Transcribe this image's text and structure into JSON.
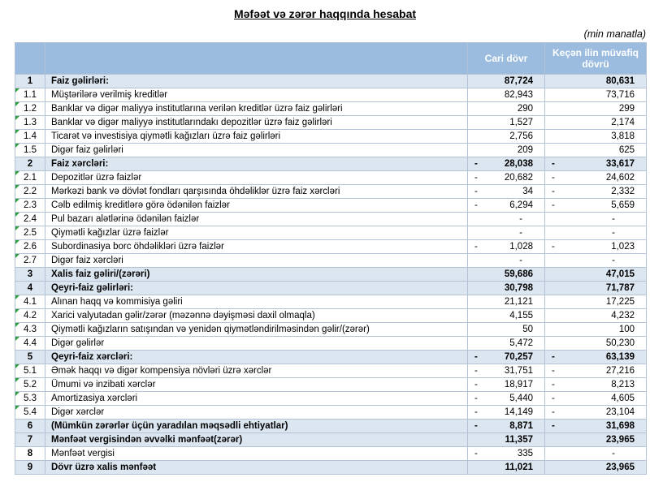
{
  "page": {
    "title": "Məfəət və zərər haqqında hesabat",
    "unit_note": "(min manatla)"
  },
  "colors": {
    "header_bg": "#9bbcdf",
    "header_text": "#ffffff",
    "band_bg": "#dce6f1",
    "border": "#b3c2d4",
    "flag_green": "#2f9e41"
  },
  "table": {
    "header": {
      "col_no": "",
      "col_label": "",
      "col_current": "Cari dövr",
      "col_previous": "Keçən ilin müvafiq dövrü"
    },
    "rows": [
      {
        "no": "1",
        "label": "Faiz gəlirləri:",
        "cur_sign": "",
        "cur": "87,724",
        "prev_sign": "",
        "prev": "80,631",
        "summary": true,
        "flag": false
      },
      {
        "no": "1.1",
        "label": "Müştərilərə verilmiş kreditlər",
        "cur_sign": "",
        "cur": "82,943",
        "prev_sign": "",
        "prev": "73,716",
        "summary": false,
        "flag": true
      },
      {
        "no": "1.2",
        "label": "Banklar və digər maliyyə institutlarına verilən kreditlər üzrə faiz gəlirləri",
        "cur_sign": "",
        "cur": "290",
        "prev_sign": "",
        "prev": "299",
        "summary": false,
        "flag": true
      },
      {
        "no": "1.3",
        "label": "Banklar və digər maliyyə institutlarındakı depozitlər üzrə faiz gəlirləri",
        "cur_sign": "",
        "cur": "1,527",
        "prev_sign": "",
        "prev": "2,174",
        "summary": false,
        "flag": true
      },
      {
        "no": "1.4",
        "label": "Ticarət və investisiya qiymətli kağızları üzrə faiz gəlirləri",
        "cur_sign": "",
        "cur": "2,756",
        "prev_sign": "",
        "prev": "3,818",
        "summary": false,
        "flag": true
      },
      {
        "no": "1.5",
        "label": "Digər faiz gəlirləri",
        "cur_sign": "",
        "cur": "209",
        "prev_sign": "",
        "prev": "625",
        "summary": false,
        "flag": true
      },
      {
        "no": "2",
        "label": "Faiz xərcləri:",
        "cur_sign": "-",
        "cur": "28,038",
        "prev_sign": "-",
        "prev": "33,617",
        "summary": true,
        "flag": false
      },
      {
        "no": "2.1",
        "label": "Depozitlər üzrə faizlər",
        "cur_sign": "-",
        "cur": "20,682",
        "prev_sign": "-",
        "prev": "24,602",
        "summary": false,
        "flag": true
      },
      {
        "no": "2.2",
        "label": "Mərkəzi bank və dövlət fondları qarşısında öhdəliklər üzrə faiz xərcləri",
        "cur_sign": "-",
        "cur": "34",
        "prev_sign": "-",
        "prev": "2,332",
        "summary": false,
        "flag": true
      },
      {
        "no": "2.3",
        "label": "Cəlb edilmiş kreditlərə görə ödənilən faizlər",
        "cur_sign": "-",
        "cur": "6,294",
        "prev_sign": "-",
        "prev": "5,659",
        "summary": false,
        "flag": true
      },
      {
        "no": "2.4",
        "label": "Pul bazarı alətlərinə ödənilən faizlər",
        "cur_sign": "",
        "cur": "-",
        "prev_sign": "",
        "prev": "-",
        "summary": false,
        "flag": true
      },
      {
        "no": "2.5",
        "label": "Qiymətli kağızlar üzrə faizlər",
        "cur_sign": "",
        "cur": "-",
        "prev_sign": "",
        "prev": "-",
        "summary": false,
        "flag": true
      },
      {
        "no": "2.6",
        "label": "Subordinasiya borc öhdəlikləri üzrə faizlər",
        "cur_sign": "-",
        "cur": "1,028",
        "prev_sign": "-",
        "prev": "1,023",
        "summary": false,
        "flag": true
      },
      {
        "no": "2.7",
        "label": "Digər faiz xərcləri",
        "cur_sign": "",
        "cur": "-",
        "prev_sign": "",
        "prev": "-",
        "summary": false,
        "flag": true
      },
      {
        "no": "3",
        "label": "Xalis faiz gəliri/(zərəri)",
        "cur_sign": "",
        "cur": "59,686",
        "prev_sign": "",
        "prev": "47,015",
        "summary": true,
        "flag": false
      },
      {
        "no": "4",
        "label": "Qeyri-faiz gəlirləri:",
        "cur_sign": "",
        "cur": "30,798",
        "prev_sign": "",
        "prev": "71,787",
        "summary": true,
        "flag": false
      },
      {
        "no": "4.1",
        "label": "Alınan haqq və kommisiya gəliri",
        "cur_sign": "",
        "cur": "21,121",
        "prev_sign": "",
        "prev": "17,225",
        "summary": false,
        "flag": true
      },
      {
        "no": "4.2",
        "label": "Xarici valyutadan gəlir/zərər (məzənnə dəyişməsi daxil olmaqla)",
        "cur_sign": "",
        "cur": "4,155",
        "prev_sign": "",
        "prev": "4,232",
        "summary": false,
        "flag": true
      },
      {
        "no": "4.3",
        "label": "Qiymətli kağızların satışından və yenidən qiymətləndirilməsindən gəlir/(zərər)",
        "cur_sign": "",
        "cur": "50",
        "prev_sign": "",
        "prev": "100",
        "summary": false,
        "flag": true
      },
      {
        "no": "4.4",
        "label": "Digər gəlirlər",
        "cur_sign": "",
        "cur": "5,472",
        "prev_sign": "",
        "prev": "50,230",
        "summary": false,
        "flag": true
      },
      {
        "no": "5",
        "label": "Qeyri-faiz xərcləri:",
        "cur_sign": "-",
        "cur": "70,257",
        "prev_sign": "-",
        "prev": "63,139",
        "summary": true,
        "flag": false
      },
      {
        "no": "5.1",
        "label": "Əmək haqqı və digər kompensiya növləri üzrə xərclər",
        "cur_sign": "-",
        "cur": "31,751",
        "prev_sign": "-",
        "prev": "27,216",
        "summary": false,
        "flag": true
      },
      {
        "no": "5.2",
        "label": "Ümumi və inzibati xərclər",
        "cur_sign": "-",
        "cur": "18,917",
        "prev_sign": "-",
        "prev": "8,213",
        "summary": false,
        "flag": true
      },
      {
        "no": "5.3",
        "label": "Amortizasiya xərcləri",
        "cur_sign": "-",
        "cur": "5,440",
        "prev_sign": "-",
        "prev": "4,605",
        "summary": false,
        "flag": true
      },
      {
        "no": "5.4",
        "label": "Digər xərclər",
        "cur_sign": "-",
        "cur": "14,149",
        "prev_sign": "-",
        "prev": "23,104",
        "summary": false,
        "flag": true
      },
      {
        "no": "6",
        "label": "(Mümkün zərərlər üçün yaradılan məqsədli ehtiyatlar)",
        "cur_sign": "-",
        "cur": "8,871",
        "prev_sign": "-",
        "prev": "31,698",
        "summary": true,
        "flag": false
      },
      {
        "no": "7",
        "label": "Mənfəət vergisindən əvvəlki mənfəət(zərər)",
        "cur_sign": "",
        "cur": "11,357",
        "prev_sign": "",
        "prev": "23,965",
        "summary": true,
        "flag": false
      },
      {
        "no": "8",
        "label": "Mənfəət vergisi",
        "cur_sign": "-",
        "cur": "335",
        "prev_sign": "",
        "prev": "-",
        "summary": false,
        "flag": false
      },
      {
        "no": "9",
        "label": "Dövr üzrə xalis mənfəət",
        "cur_sign": "",
        "cur": "11,021",
        "prev_sign": "",
        "prev": "23,965",
        "summary": true,
        "flag": false
      }
    ]
  }
}
